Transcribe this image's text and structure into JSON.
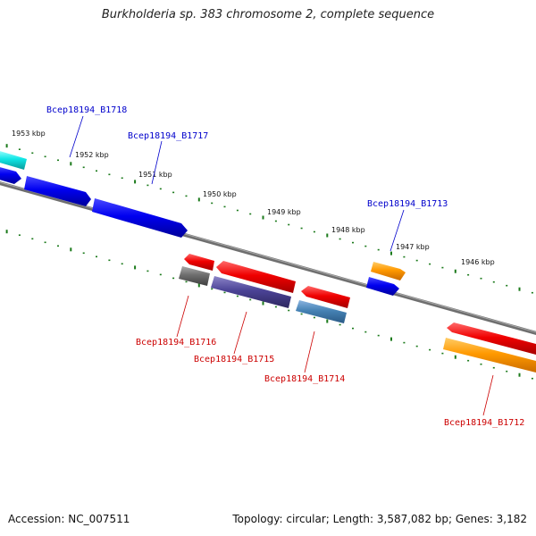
{
  "title": "Burkholderia sp. 383 chromosome 2, complete sequence",
  "footer": {
    "accession": "Accession: NC_007511",
    "summary": "Topology: circular; Length: 3,587,082 bp; Genes: 3,182"
  },
  "ticks": [
    "1953 kbp",
    "1952 kbp",
    "1951 kbp",
    "1950 kbp",
    "1949 kbp",
    "1948 kbp",
    "1947 kbp",
    "1946 kbp"
  ],
  "gene_labels": {
    "top": [
      "Bcep18194_B1718",
      "Bcep18194_B1717",
      "Bcep18194_B1713"
    ],
    "bottom": [
      "Bcep18194_B1716",
      "Bcep18194_B1715",
      "Bcep18194_B1714",
      "Bcep18194_B1712"
    ]
  },
  "colors": {
    "label_forward": "#0000cc",
    "label_reverse": "#cc0000",
    "backbone": "#7a7a7a",
    "tick": "#1b7a1b"
  }
}
